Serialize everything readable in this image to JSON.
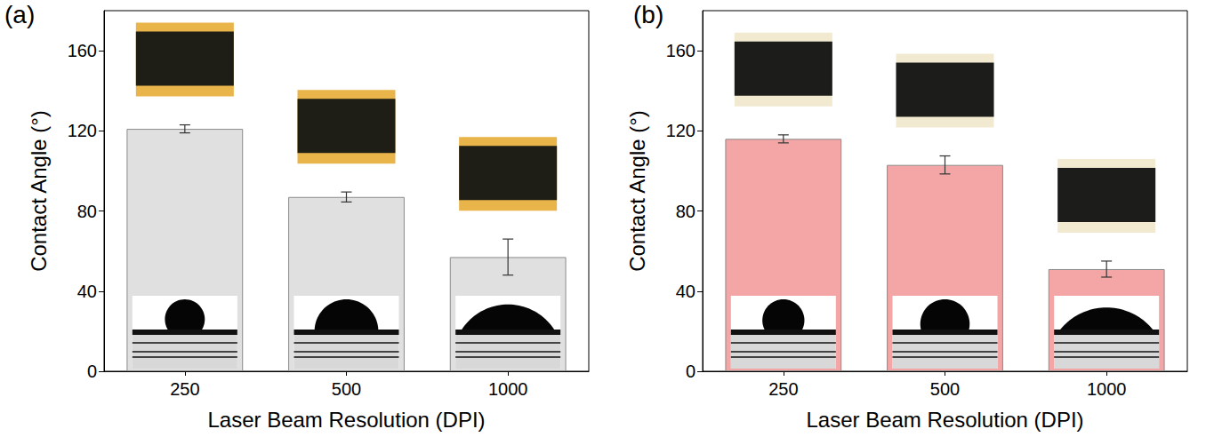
{
  "chart_data": [
    {
      "type": "bar",
      "title": "(a)",
      "x_label": "Laser Beam Resolution (DPI)",
      "y_label": "Contact Angle (°)",
      "categories": [
        "250",
        "500",
        "1000"
      ],
      "values": [
        121,
        87,
        57
      ],
      "errors": [
        2,
        2.5,
        9
      ],
      "color": "#e0e0e0",
      "ylim": [
        0,
        180
      ],
      "yticks": [
        0,
        40,
        80,
        120,
        160
      ],
      "grid": false
    },
    {
      "type": "bar",
      "title": "(b)",
      "x_label": "Laser Beam Resolution (DPI)",
      "y_label": "Contact Angle (°)",
      "categories": [
        "250",
        "500",
        "1000"
      ],
      "values": [
        116,
        103,
        51
      ],
      "errors": [
        2,
        4.5,
        4
      ],
      "color": "#f4a6a6",
      "ylim": [
        0,
        180
      ],
      "yticks": [
        0,
        40,
        80,
        120,
        160
      ],
      "grid": false
    }
  ]
}
